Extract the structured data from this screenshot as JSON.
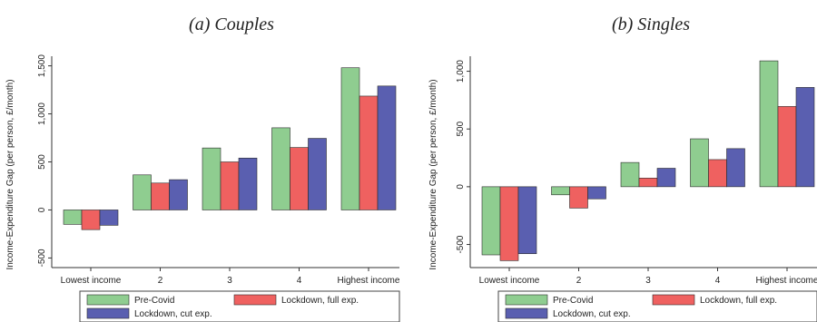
{
  "colors": {
    "pre_covid": "#8fcd90",
    "lockdown_full": "#ef6160",
    "lockdown_cut": "#5a5fb0"
  },
  "chart_data": [
    {
      "type": "bar",
      "title": "(a) Couples",
      "ylabel": "Income-Expenditure Gap (per person, £/month)",
      "xlabel": "",
      "categories": [
        "Lowest income",
        "2",
        "3",
        "4",
        "Highest income"
      ],
      "yticks": [
        -500,
        0,
        500,
        1000,
        1500
      ],
      "ytick_labels": [
        "-500",
        "0",
        "500",
        "1,000",
        "1,500"
      ],
      "ylim": [
        -600,
        1600
      ],
      "grid": false,
      "legend_position": "bottom",
      "series": [
        {
          "name": "Pre-Covid",
          "values": [
            -150,
            365,
            645,
            855,
            1480
          ]
        },
        {
          "name": "Lockdown, full exp.",
          "values": [
            -205,
            280,
            500,
            650,
            1185
          ]
        },
        {
          "name": "Lockdown, cut exp.",
          "values": [
            -160,
            315,
            540,
            745,
            1290
          ]
        }
      ]
    },
    {
      "type": "bar",
      "title": "(b) Singles",
      "ylabel": "Income-Expenditure Gap (per person, £/month)",
      "xlabel": "",
      "categories": [
        "Lowest income",
        "2",
        "3",
        "4",
        "Highest income"
      ],
      "yticks": [
        -500,
        0,
        500,
        1000
      ],
      "ytick_labels": [
        "-500",
        "0",
        "500",
        "1,000"
      ],
      "ylim": [
        -700,
        1130
      ],
      "grid": false,
      "legend_position": "bottom",
      "series": [
        {
          "name": "Pre-Covid",
          "values": [
            -590,
            -70,
            210,
            415,
            1090
          ]
        },
        {
          "name": "Lockdown, full exp.",
          "values": [
            -640,
            -185,
            75,
            235,
            695
          ]
        },
        {
          "name": "Lockdown, cut exp.",
          "values": [
            -580,
            -105,
            160,
            330,
            860
          ]
        }
      ]
    }
  ]
}
